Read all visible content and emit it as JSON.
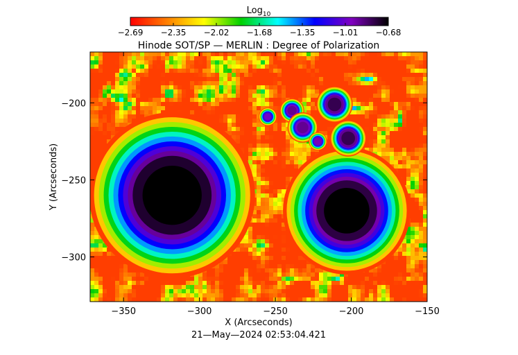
{
  "chart_data": {
    "type": "heatmap",
    "title": "Hinode SOT/SP — MERLIN : Degree of Polarization",
    "xlabel": "X (Arcseconds)",
    "ylabel": "Y (Arcseconds)",
    "timestamp": "21—May—2024 02:53:04.421",
    "colorbar": {
      "label_main": "Log",
      "label_sub": "10",
      "range": [
        -2.69,
        -0.68
      ],
      "ticks": [
        "−2.69",
        "−2.35",
        "−2.02",
        "−1.68",
        "−1.35",
        "−1.01",
        "−0.68"
      ],
      "colors": [
        "#ff0000",
        "#ff8000",
        "#ffff00",
        "#00d000",
        "#00ffff",
        "#0000ff",
        "#8000c0",
        "#000000"
      ]
    },
    "xlim": [
      -372,
      -150
    ],
    "ylim": [
      -329,
      -167
    ],
    "xticks": [
      -350,
      -300,
      -250,
      -200,
      -150
    ],
    "yticks": [
      -200,
      -250,
      -300
    ],
    "xtick_labels": [
      "−350",
      "−300",
      "−250",
      "−200",
      "−150"
    ],
    "ytick_labels": [
      "−200",
      "−250",
      "−300"
    ],
    "background_level": -2.55,
    "features": [
      {
        "kind": "sunspot",
        "x": -318,
        "y": -260,
        "r": 26,
        "level": -0.75
      },
      {
        "kind": "sunspot",
        "x": -203,
        "y": -270,
        "r": 20,
        "level": -0.78
      },
      {
        "kind": "pore",
        "x": -211,
        "y": -201,
        "r": 6,
        "level": -0.9
      },
      {
        "kind": "pore",
        "x": -202,
        "y": -223,
        "r": 6,
        "level": -0.9
      },
      {
        "kind": "pore",
        "x": -239,
        "y": -205,
        "r": 4,
        "level": -1.0
      },
      {
        "kind": "pore",
        "x": -232,
        "y": -216,
        "r": 5,
        "level": -1.0
      },
      {
        "kind": "pore",
        "x": -222,
        "y": -225,
        "r": 3,
        "level": -1.05
      },
      {
        "kind": "pore",
        "x": -255,
        "y": -209,
        "r": 3,
        "level": -1.1
      }
    ]
  }
}
